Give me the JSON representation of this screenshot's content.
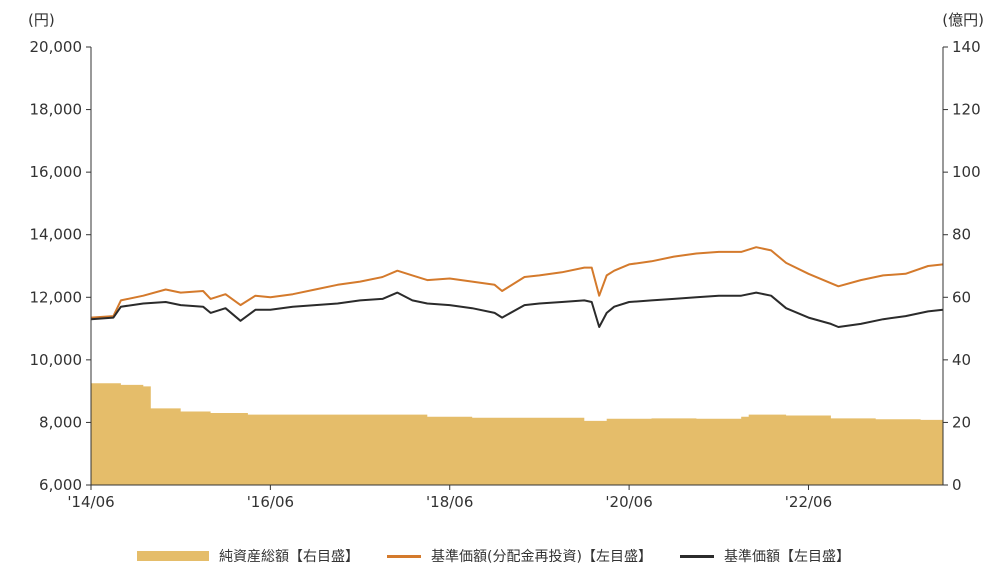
{
  "chart_data": {
    "type": "line",
    "left_axis": {
      "unit": "(円)",
      "min": 6000,
      "max": 20000,
      "ticks": [
        "6,000",
        "8,000",
        "10,000",
        "12,000",
        "14,000",
        "16,000",
        "18,000",
        "20,000"
      ],
      "tick_values": [
        6000,
        8000,
        10000,
        12000,
        14000,
        16000,
        18000,
        20000
      ]
    },
    "right_axis": {
      "unit": "(億円)",
      "min": 0,
      "max": 140,
      "ticks": [
        "0",
        "20",
        "40",
        "60",
        "80",
        "100",
        "120",
        "140"
      ],
      "tick_values": [
        0,
        20,
        40,
        60,
        80,
        100,
        120,
        140
      ]
    },
    "x_axis": {
      "min": "2014-06",
      "max": "2023-12",
      "tick_labels": [
        "'14/06",
        "'16/06",
        "'18/06",
        "'20/06",
        "'22/06"
      ],
      "tick_values": [
        "2014-06",
        "2016-06",
        "2018-06",
        "2020-06",
        "2022-06"
      ]
    },
    "series": [
      {
        "name": "純資産総額【右目盛】",
        "kind": "area",
        "axis": "right",
        "color": "#E5BD6A",
        "x": [
          "2014-06",
          "2014-10",
          "2015-01",
          "2015-02",
          "2015-06",
          "2015-10",
          "2016-03",
          "2016-06",
          "2016-10",
          "2017-03",
          "2017-09",
          "2017-11",
          "2018-03",
          "2018-09",
          "2019-03",
          "2019-09",
          "2019-11",
          "2019-12",
          "2020-03",
          "2020-09",
          "2021-03",
          "2021-09",
          "2021-10",
          "2022-03",
          "2022-09",
          "2023-03",
          "2023-09",
          "2023-12"
        ],
        "values": [
          32.5,
          32,
          31.5,
          24.5,
          23.5,
          23,
          22.5,
          22.5,
          22.5,
          22.5,
          22.5,
          22.5,
          21.8,
          21.5,
          21.5,
          21.5,
          21.5,
          20.5,
          21.2,
          21.3,
          21.2,
          21.8,
          22.5,
          22.2,
          21.3,
          21.0,
          20.8,
          20.0
        ]
      },
      {
        "name": "基準価額(分配金再投資)【左目盛】",
        "kind": "line",
        "axis": "left",
        "color": "#D47A2C",
        "x": [
          "2014-06",
          "2014-09",
          "2014-10",
          "2015-01",
          "2015-04",
          "2015-06",
          "2015-09",
          "2015-10",
          "2015-12",
          "2016-02",
          "2016-04",
          "2016-06",
          "2016-09",
          "2016-12",
          "2017-03",
          "2017-06",
          "2017-09",
          "2017-11",
          "2018-01",
          "2018-03",
          "2018-06",
          "2018-09",
          "2018-12",
          "2019-01",
          "2019-04",
          "2019-06",
          "2019-09",
          "2019-12",
          "2020-01",
          "2020-02",
          "2020-03",
          "2020-04",
          "2020-06",
          "2020-09",
          "2020-12",
          "2021-03",
          "2021-06",
          "2021-09",
          "2021-11",
          "2022-01",
          "2022-03",
          "2022-06",
          "2022-09",
          "2022-10",
          "2023-01",
          "2023-04",
          "2023-07",
          "2023-10",
          "2023-12"
        ],
        "values": [
          11350,
          11400,
          11900,
          12050,
          12250,
          12150,
          12200,
          11950,
          12100,
          11750,
          12050,
          12000,
          12100,
          12250,
          12400,
          12500,
          12650,
          12850,
          12700,
          12550,
          12600,
          12500,
          12400,
          12200,
          12650,
          12700,
          12800,
          12950,
          12950,
          12050,
          12700,
          12850,
          13050,
          13150,
          13300,
          13400,
          13450,
          13450,
          13600,
          13500,
          13100,
          12750,
          12450,
          12350,
          12550,
          12700,
          12750,
          13000,
          13050
        ]
      },
      {
        "name": "基準価額【左目盛】",
        "kind": "line",
        "axis": "left",
        "color": "#2B2B2B",
        "x": [
          "2014-06",
          "2014-09",
          "2014-10",
          "2015-01",
          "2015-04",
          "2015-06",
          "2015-09",
          "2015-10",
          "2015-12",
          "2016-02",
          "2016-04",
          "2016-06",
          "2016-09",
          "2016-12",
          "2017-03",
          "2017-06",
          "2017-09",
          "2017-11",
          "2018-01",
          "2018-03",
          "2018-06",
          "2018-09",
          "2018-12",
          "2019-01",
          "2019-04",
          "2019-06",
          "2019-09",
          "2019-12",
          "2020-01",
          "2020-02",
          "2020-03",
          "2020-04",
          "2020-06",
          "2020-09",
          "2020-12",
          "2021-03",
          "2021-06",
          "2021-09",
          "2021-11",
          "2022-01",
          "2022-03",
          "2022-06",
          "2022-09",
          "2022-10",
          "2023-01",
          "2023-04",
          "2023-07",
          "2023-10",
          "2023-12"
        ],
        "values": [
          11300,
          11350,
          11700,
          11800,
          11850,
          11750,
          11700,
          11500,
          11650,
          11250,
          11600,
          11600,
          11700,
          11750,
          11800,
          11900,
          11950,
          12150,
          11900,
          11800,
          11750,
          11650,
          11500,
          11350,
          11750,
          11800,
          11850,
          11900,
          11850,
          11050,
          11500,
          11700,
          11850,
          11900,
          11950,
          12000,
          12050,
          12050,
          12150,
          12050,
          11650,
          11350,
          11150,
          11050,
          11150,
          11300,
          11400,
          11550,
          11600
        ]
      }
    ]
  }
}
